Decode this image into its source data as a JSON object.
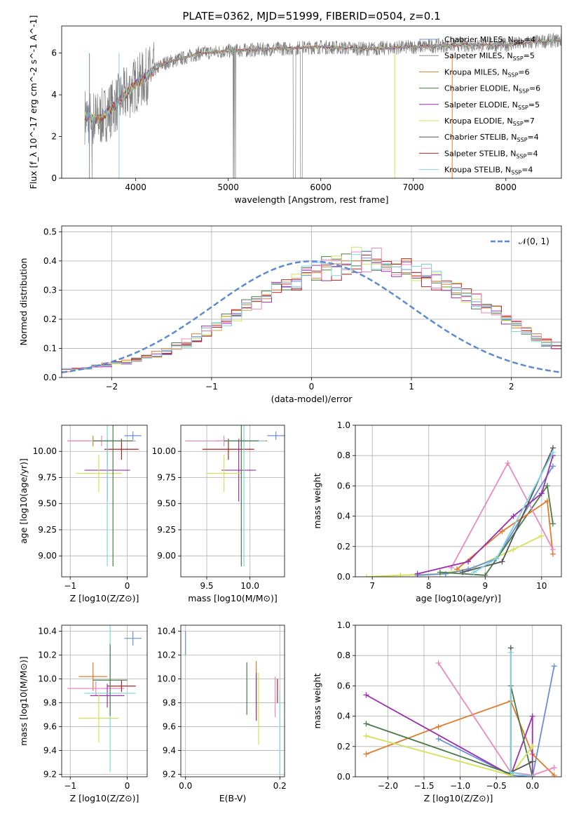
{
  "chart_data": [
    {
      "id": "spectrum",
      "type": "line",
      "title": "PLATE=0362, MJD=51999, FIBERID=0504, z=0.1",
      "xlabel": "wavelength [Angstrom, rest frame]",
      "ylabel": "Flux [f_λ 10^-17 erg cm^-2 s^-1 A^-1]",
      "xlim": [
        3200,
        8600
      ],
      "ylim": [
        0,
        7.3
      ],
      "xticks": [
        4000,
        5000,
        6000,
        7000,
        8000
      ],
      "yticks": [
        0,
        2,
        4,
        6
      ],
      "grid": false,
      "legend_position": "right",
      "data_series_color": "#808080",
      "data_anchor": {
        "x": [
          3450,
          3600,
          3800,
          4000,
          4300,
          4700,
          5000,
          5500,
          6000,
          6500,
          7000,
          7500,
          8000,
          8500
        ],
        "y": [
          3.0,
          2.8,
          3.6,
          4.5,
          5.5,
          6.0,
          6.1,
          6.2,
          6.3,
          6.2,
          6.3,
          6.4,
          6.4,
          6.6
        ]
      },
      "legend": [
        {
          "label": "Chabrier MILES, N",
          "sub": "SSP",
          "suffix": "=4",
          "color": "#6a8fd9"
        },
        {
          "label": "Salpeter MILES, N",
          "sub": "SSP",
          "suffix": "=5",
          "color": "#8f8f8f"
        },
        {
          "label": "Kroupa MILES, N",
          "sub": "SSP",
          "suffix": "=6",
          "color": "#e07b2a"
        },
        {
          "label": "Chabrier ELODIE, N",
          "sub": "SSP",
          "suffix": "=6",
          "color": "#4a7a4a"
        },
        {
          "label": "Salpeter ELODIE, N",
          "sub": "SSP",
          "suffix": "=5",
          "color": "#9b2fae"
        },
        {
          "label": "Kroupa ELODIE, N",
          "sub": "SSP",
          "suffix": "=7",
          "color": "#d4e157"
        },
        {
          "label": "Chabrier STELIB, N",
          "sub": "SSP",
          "suffix": "=4",
          "color": "#555555"
        },
        {
          "label": "Salpeter STELIB, N",
          "sub": "SSP",
          "suffix": "=4",
          "color": "#b22222"
        },
        {
          "label": "Kroupa STELIB, N",
          "sub": "SSP",
          "suffix": "=4",
          "color": "#7fd3e0"
        }
      ]
    },
    {
      "id": "residuals",
      "type": "histogram",
      "xlabel": "(data-model)/error",
      "ylabel": "Normed distribution",
      "xlim": [
        -2.5,
        2.5
      ],
      "ylim": [
        0,
        0.52
      ],
      "xticks": [
        -2,
        -1,
        0,
        1,
        2
      ],
      "yticks": [
        0.0,
        0.1,
        0.2,
        0.3,
        0.4,
        0.5
      ],
      "grid": true,
      "legend": [
        {
          "label": "𝒩(0, 1)",
          "color": "#5b8bd4",
          "style": "dashed"
        }
      ],
      "legend_position": "top-right",
      "bin_width": 0.1,
      "series": [
        {
          "color": "#6a8fd9",
          "values": [
            0.03,
            0.03,
            0.03,
            0.04,
            0.04,
            0.05,
            0.05,
            0.06,
            0.07,
            0.08,
            0.09,
            0.11,
            0.12,
            0.14,
            0.16,
            0.18,
            0.2,
            0.22,
            0.24,
            0.26,
            0.28,
            0.3,
            0.31,
            0.33,
            0.35,
            0.36,
            0.37,
            0.38,
            0.39,
            0.4,
            0.41,
            0.4,
            0.39,
            0.38,
            0.37,
            0.36,
            0.35,
            0.33,
            0.31,
            0.3,
            0.28,
            0.26,
            0.24,
            0.22,
            0.2,
            0.18,
            0.16,
            0.14,
            0.12,
            0.11
          ]
        },
        {
          "color": "#e07b2a",
          "values": [
            0.02,
            0.03,
            0.03,
            0.04,
            0.05,
            0.05,
            0.06,
            0.06,
            0.07,
            0.09,
            0.1,
            0.11,
            0.12,
            0.15,
            0.17,
            0.18,
            0.21,
            0.23,
            0.25,
            0.27,
            0.27,
            0.3,
            0.32,
            0.34,
            0.36,
            0.36,
            0.38,
            0.39,
            0.4,
            0.4,
            0.4,
            0.4,
            0.38,
            0.39,
            0.36,
            0.35,
            0.34,
            0.33,
            0.32,
            0.29,
            0.29,
            0.25,
            0.25,
            0.22,
            0.21,
            0.17,
            0.16,
            0.15,
            0.13,
            0.1
          ]
        }
      ],
      "normal_curve": {
        "mean": 0,
        "std": 1
      }
    },
    {
      "id": "age_vs_Z",
      "type": "errorbar",
      "xlabel": "Z [log10(Z/Z⊙)]",
      "ylabel": "age  [log10(age/yr)]",
      "xlim": [
        -1.15,
        0.35
      ],
      "ylim": [
        8.8,
        10.25
      ],
      "xticks": [
        -1,
        0
      ],
      "yticks": [
        9.0,
        9.25,
        9.5,
        9.75,
        10.0
      ],
      "grid": true,
      "points": [
        {
          "x": 0.1,
          "y": 10.15,
          "xerr": 0.15,
          "yerr": 0.04,
          "color": "#6a8fd9"
        },
        {
          "x": -0.6,
          "y": 10.1,
          "xerr": 0.45,
          "yerr": 0.05,
          "color": "#e07b2a"
        },
        {
          "x": -0.45,
          "y": 10.1,
          "xerr": 0.6,
          "yerr": 0.05,
          "color": "#e989c0"
        },
        {
          "x": -0.1,
          "y": 10.02,
          "xerr": 0.3,
          "yerr": 0.1,
          "color": "#b22222"
        },
        {
          "x": -0.35,
          "y": 9.82,
          "xerr": 0.4,
          "yerr": 0.3,
          "color": "#9b2fae"
        },
        {
          "x": -0.5,
          "y": 9.79,
          "xerr": 0.4,
          "yerr": 0.18,
          "color": "#d4e157"
        },
        {
          "x": -0.35,
          "y": 10.1,
          "xerr": 0.3,
          "yerr": 1.2,
          "color": "#7fd3e0"
        },
        {
          "x": -0.25,
          "y": 10.1,
          "xerr": 0.35,
          "yerr": 1.2,
          "color": "#4a7a4a"
        }
      ]
    },
    {
      "id": "age_vs_mass",
      "type": "errorbar",
      "xlabel": "mass [log10(M/M⊙)]",
      "ylabel": "",
      "xlim": [
        9.2,
        10.4
      ],
      "ylim": [
        8.8,
        10.25
      ],
      "xticks": [
        9.5,
        10.0
      ],
      "yticks": [
        9.0,
        9.25,
        9.5,
        9.75,
        10.0
      ],
      "grid": true,
      "points": [
        {
          "x": 10.3,
          "y": 10.15,
          "xerr": 0.1,
          "yerr": 0.04,
          "color": "#6a8fd9"
        },
        {
          "x": 9.9,
          "y": 10.1,
          "xerr": 0.3,
          "yerr": 0.05,
          "color": "#e07b2a"
        },
        {
          "x": 9.7,
          "y": 10.1,
          "xerr": 0.45,
          "yerr": 0.05,
          "color": "#e989c0"
        },
        {
          "x": 9.75,
          "y": 10.02,
          "xerr": 0.3,
          "yerr": 0.1,
          "color": "#b22222"
        },
        {
          "x": 9.87,
          "y": 9.82,
          "xerr": 0.2,
          "yerr": 0.3,
          "color": "#9b2fae"
        },
        {
          "x": 9.7,
          "y": 9.79,
          "xerr": 0.2,
          "yerr": 0.18,
          "color": "#d4e157"
        },
        {
          "x": 9.93,
          "y": 10.1,
          "xerr": 0.25,
          "yerr": 1.2,
          "color": "#7fd3e0"
        },
        {
          "x": 9.9,
          "y": 10.1,
          "xerr": 0.2,
          "yerr": 1.2,
          "color": "#4a7a4a"
        }
      ]
    },
    {
      "id": "massweight_vs_age",
      "type": "line",
      "xlabel": "age  [log10(age/yr)]",
      "ylabel": "mass weight",
      "xlim": [
        6.7,
        10.35
      ],
      "ylim": [
        0,
        1
      ],
      "xticks": [
        7,
        8,
        9,
        10
      ],
      "yticks": [
        0.0,
        0.2,
        0.4,
        0.6,
        0.8,
        1.0
      ],
      "grid": true,
      "series": [
        {
          "color": "#d4e157",
          "x": [
            6.9,
            7.5,
            8.2,
            8.8,
            9.5,
            10.0
          ],
          "y": [
            0.0,
            0.01,
            0.02,
            0.06,
            0.18,
            0.27
          ]
        },
        {
          "color": "#6a8fd9",
          "x": [
            7.8,
            8.3,
            8.7,
            9.2,
            10.2
          ],
          "y": [
            0.01,
            0.02,
            0.05,
            0.12,
            0.73
          ]
        },
        {
          "color": "#4a7a4a",
          "x": [
            8.2,
            9.0,
            10.1,
            10.2
          ],
          "y": [
            0.03,
            0.01,
            0.6,
            0.35
          ]
        },
        {
          "color": "#e07b2a",
          "x": [
            8.5,
            9.3,
            10.1,
            10.2
          ],
          "y": [
            0.05,
            0.3,
            0.5,
            0.15
          ]
        },
        {
          "color": "#e989c0",
          "x": [
            8.4,
            9.4,
            10.2
          ],
          "y": [
            0.06,
            0.75,
            0.18
          ]
        },
        {
          "color": "#9b2fae",
          "x": [
            7.8,
            8.7,
            9.5,
            10.0,
            10.2
          ],
          "y": [
            0.02,
            0.1,
            0.4,
            0.55,
            0.8
          ]
        },
        {
          "color": "#555555",
          "x": [
            8.6,
            9.3,
            10.2
          ],
          "y": [
            0.03,
            0.1,
            0.85
          ]
        },
        {
          "color": "#7fd3e0",
          "x": [
            8.8,
            9.2,
            10.2
          ],
          "y": [
            0.03,
            0.12,
            0.82
          ]
        }
      ]
    },
    {
      "id": "mass_vs_Z",
      "type": "errorbar",
      "xlabel": "Z [log10(Z/Z⊙)]",
      "ylabel": "mass [log10(M/M⊙)]",
      "xlim": [
        -1.15,
        0.35
      ],
      "ylim": [
        9.18,
        10.45
      ],
      "xticks": [
        -1,
        0
      ],
      "yticks": [
        9.2,
        9.4,
        9.6,
        9.8,
        10.0,
        10.2,
        10.4
      ],
      "grid": true,
      "points": [
        {
          "x": 0.1,
          "y": 10.34,
          "xerr": 0.15,
          "yerr": 0.06,
          "color": "#6a8fd9"
        },
        {
          "x": -0.6,
          "y": 10.02,
          "xerr": 0.25,
          "yerr": 0.12,
          "color": "#e07b2a"
        },
        {
          "x": -0.55,
          "y": 9.92,
          "xerr": 0.5,
          "yerr": 0.06,
          "color": "#e989c0"
        },
        {
          "x": -0.1,
          "y": 9.94,
          "xerr": 0.25,
          "yerr": 0.05,
          "color": "#b22222"
        },
        {
          "x": -0.35,
          "y": 9.86,
          "xerr": 0.3,
          "yerr": 0.1,
          "color": "#9b2fae"
        },
        {
          "x": -0.5,
          "y": 9.67,
          "xerr": 0.35,
          "yerr": 0.2,
          "color": "#d4e157"
        },
        {
          "x": -0.3,
          "y": 9.88,
          "xerr": 0.45,
          "yerr": 0.66,
          "color": "#7fd3e0"
        },
        {
          "x": -0.3,
          "y": 9.99,
          "xerr": 0.3,
          "yerr": 0.3,
          "color": "#4a7a4a"
        }
      ]
    },
    {
      "id": "mass_vs_ebv",
      "type": "errorbar",
      "xlabel": "E(B-V)",
      "ylabel": "",
      "xlim": [
        -0.01,
        0.21
      ],
      "ylim": [
        9.18,
        10.45
      ],
      "xticks": [
        0.0,
        0.2
      ],
      "yticks": [
        9.2,
        9.4,
        9.6,
        9.8,
        10.0,
        10.2,
        10.4
      ],
      "grid": true,
      "points": [
        {
          "x": 0.0,
          "y": 10.3,
          "xerr": 0,
          "yerr": 0.1,
          "color": "#6a8fd9"
        },
        {
          "x": 0.13,
          "y": 9.92,
          "xerr": 0,
          "yerr": 0.22,
          "color": "#4a7a4a"
        },
        {
          "x": 0.15,
          "y": 9.9,
          "xerr": 0,
          "yerr": 0.25,
          "color": "#e07b2a"
        },
        {
          "x": 0.155,
          "y": 9.75,
          "xerr": 0,
          "yerr": 0.3,
          "color": "#d4e157"
        },
        {
          "x": 0.15,
          "y": 9.85,
          "xerr": 0,
          "yerr": 0.2,
          "color": "#9b2fae"
        },
        {
          "x": 0.19,
          "y": 9.85,
          "xerr": 0,
          "yerr": 0.17,
          "color": "#e989c0"
        },
        {
          "x": 0.195,
          "y": 9.9,
          "xerr": 0,
          "yerr": 0.1,
          "color": "#b22222"
        },
        {
          "x": 0.2,
          "y": 9.55,
          "xerr": 0,
          "yerr": 0.35,
          "color": "#7fd3e0"
        }
      ]
    },
    {
      "id": "massweight_vs_Z",
      "type": "line",
      "xlabel": "Z [log10(Z/Z⊙)]",
      "ylabel": "mass weight",
      "xlim": [
        -2.45,
        0.4
      ],
      "ylim": [
        0,
        1
      ],
      "xticks": [
        -2.0,
        -1.5,
        -1.0,
        -0.5,
        0.0
      ],
      "yticks": [
        0.0,
        0.2,
        0.4,
        0.6,
        0.8,
        1.0
      ],
      "grid": true,
      "series": [
        {
          "color": "#6a8fd9",
          "x": [
            -1.3,
            -0.3,
            0.0,
            0.3
          ],
          "y": [
            0.25,
            0.01,
            0.0,
            0.73
          ]
        },
        {
          "color": "#e07b2a",
          "x": [
            -2.3,
            -1.3,
            -0.3,
            0.0,
            0.3
          ],
          "y": [
            0.15,
            0.33,
            0.5,
            0.15,
            0.01
          ]
        },
        {
          "color": "#e989c0",
          "x": [
            -1.3,
            -0.3,
            0.0,
            0.3
          ],
          "y": [
            0.75,
            0.03,
            0.01,
            0.06
          ]
        },
        {
          "color": "#9b2fae",
          "x": [
            -2.3,
            -0.3,
            0.0,
            0.0
          ],
          "y": [
            0.54,
            0.01,
            0.4,
            0.0
          ]
        },
        {
          "color": "#4a7a4a",
          "x": [
            -2.3,
            -0.3,
            -0.3,
            0.0
          ],
          "y": [
            0.35,
            0.02,
            0.6,
            0.0
          ]
        },
        {
          "color": "#d4e157",
          "x": [
            -2.3,
            -0.3,
            0.0
          ],
          "y": [
            0.27,
            0.01,
            0.2
          ]
        },
        {
          "color": "#555555",
          "x": [
            -0.3,
            -0.3,
            0.0
          ],
          "y": [
            0.85,
            0.03,
            0.1
          ]
        },
        {
          "color": "#7fd3e0",
          "x": [
            -0.3,
            -0.3,
            0.0
          ],
          "y": [
            0.82,
            0.03,
            0.0
          ]
        }
      ]
    }
  ]
}
